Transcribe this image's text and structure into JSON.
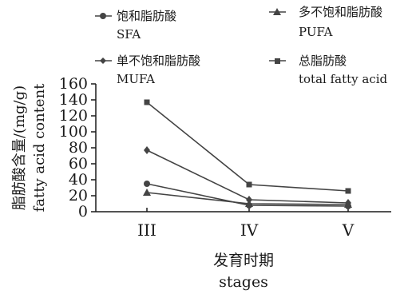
{
  "chart_data": {
    "type": "line",
    "categories": [
      "III",
      "IV",
      "V"
    ],
    "series": [
      {
        "name": "饱和脂肪酸",
        "name_en": "SFA",
        "marker": "circle",
        "values": [
          35,
          8,
          7
        ]
      },
      {
        "name": "多不饱和脂肪酸",
        "name_en": "PUFA",
        "marker": "triangle",
        "values": [
          24,
          10,
          9
        ]
      },
      {
        "name": "单不饱和脂肪酸",
        "name_en": "MUFA",
        "marker": "diamond",
        "values": [
          77,
          15,
          11
        ]
      },
      {
        "name": "总脂肪酸",
        "name_en": "total fatty acid",
        "marker": "square",
        "values": [
          137,
          34,
          26
        ]
      }
    ],
    "ylabel": "脂肪酸含量/(mg/g)",
    "ylabel_en": "fatty acid content",
    "xlabel": "发育时期",
    "xlabel_en": "stages",
    "ylim": [
      0,
      160
    ],
    "yticks": [
      "0",
      "20",
      "40",
      "60",
      "80",
      "100",
      "120",
      "140",
      "160"
    ],
    "grid": false,
    "legend_position": "top",
    "line_color": "#444444"
  }
}
